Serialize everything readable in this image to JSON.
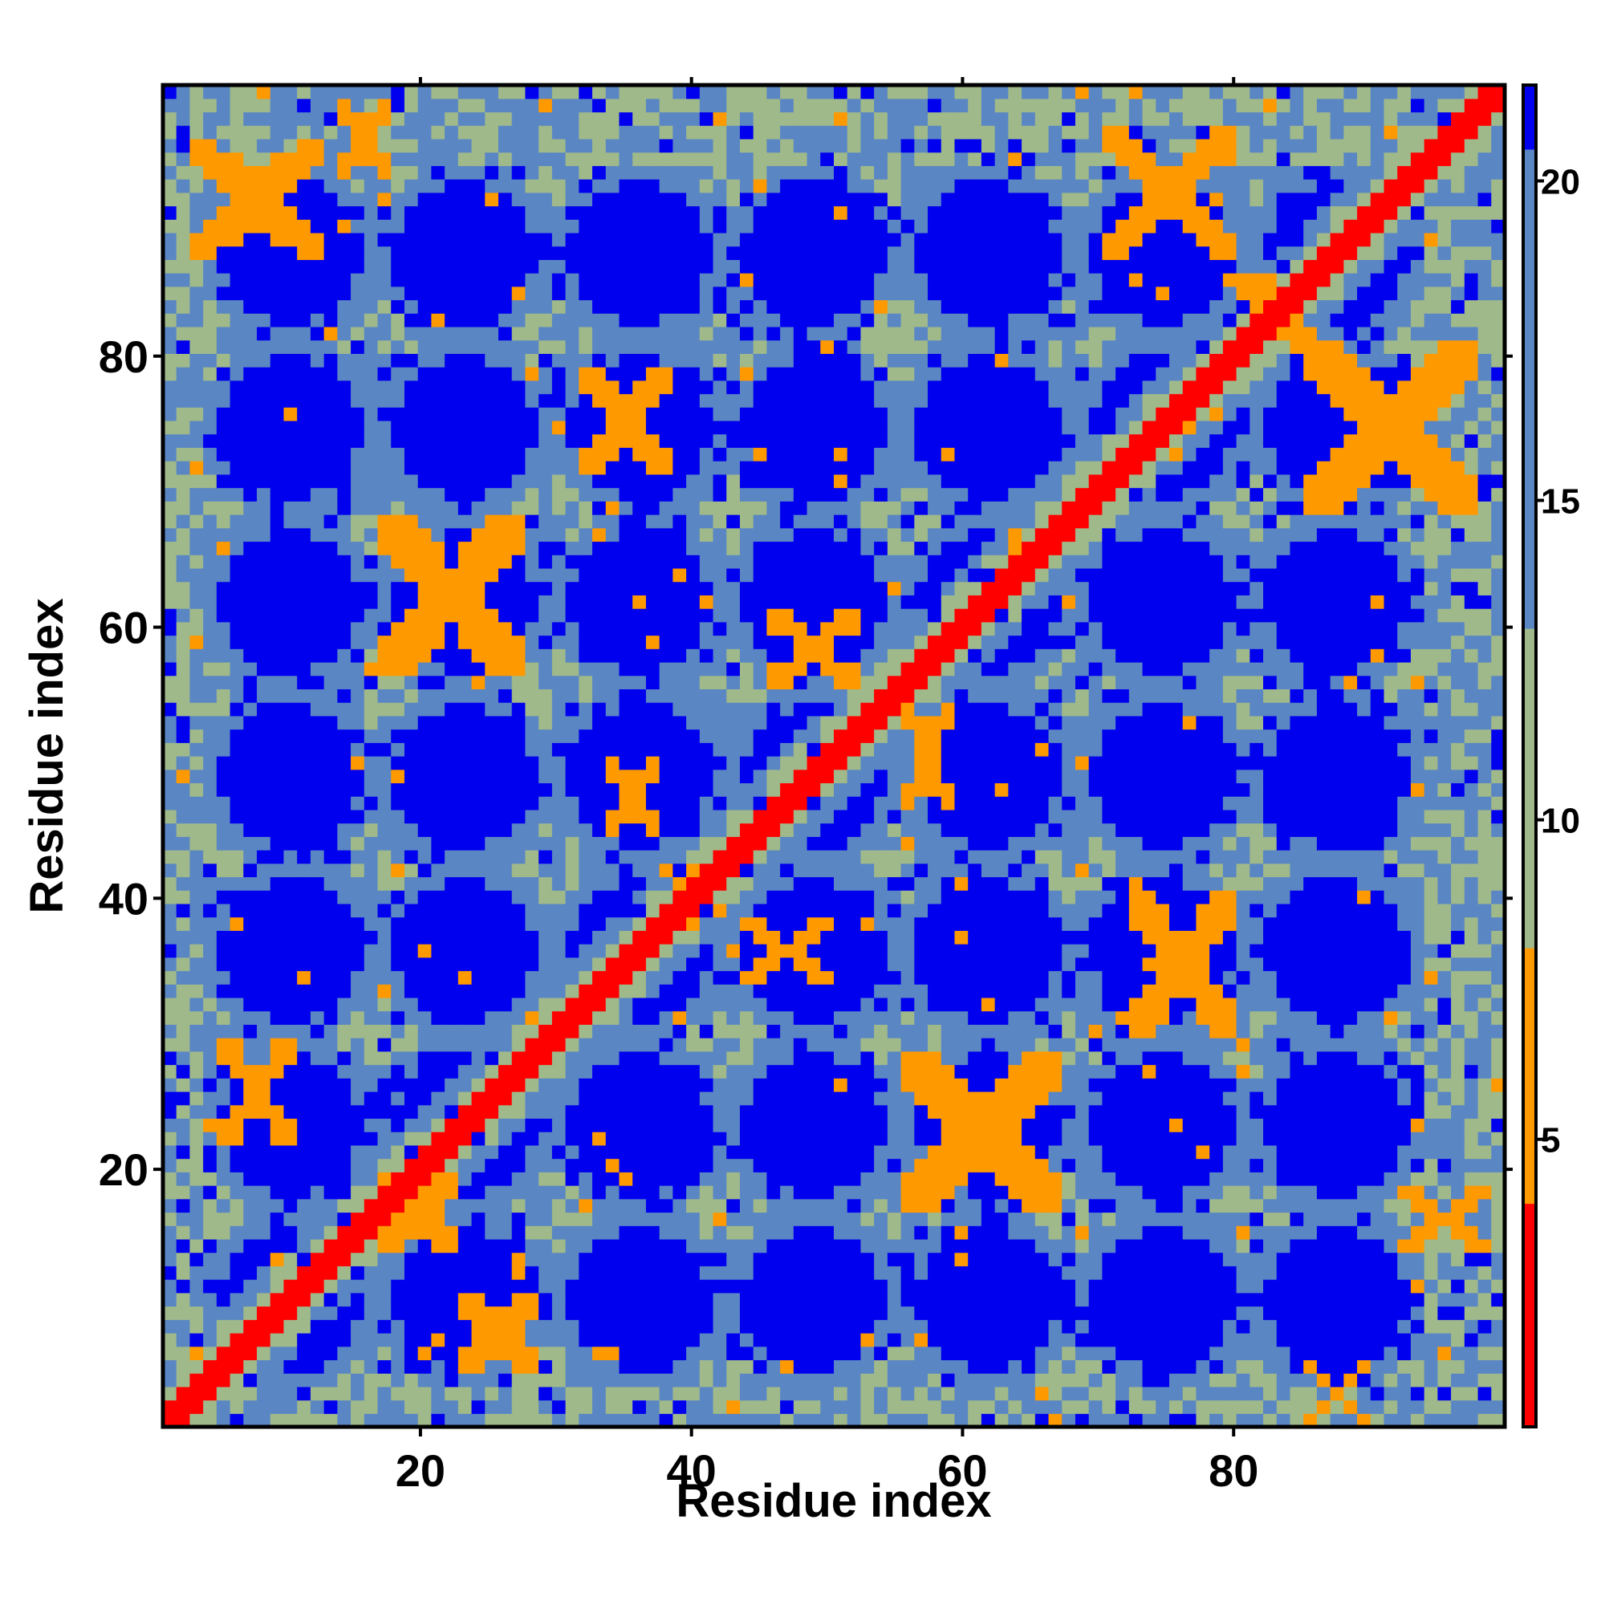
{
  "chart_data": {
    "type": "heatmap",
    "title": "",
    "xlabel": "Residue index",
    "ylabel": "Residue index",
    "n_residues": 100,
    "xlim": [
      1,
      100
    ],
    "ylim": [
      1,
      100
    ],
    "x_ticks": [
      20,
      40,
      60,
      80
    ],
    "y_ticks": [
      20,
      40,
      60,
      80
    ],
    "value_description": "pairwise distance",
    "colorbar": {
      "range": [
        0.5,
        21.5
      ],
      "ticks": [
        5,
        10,
        15,
        20
      ],
      "tick_labels": [
        "5",
        "10",
        "15",
        "20"
      ],
      "colors": {
        "very_close": "#ff0000",
        "close": "#ff9900",
        "medium": "#9fb98a",
        "far": "#5a86c4",
        "beyond": "#0000ee"
      }
    },
    "pattern": {
      "diagonal_half_width": 1.6,
      "blob_centers": [
        10,
        23,
        36,
        49,
        62,
        75,
        88
      ],
      "blob_radius_cells": 6.5,
      "contact_strands": [
        {
          "x": [
            3,
            12
          ],
          "y": [
            88,
            96
          ]
        },
        {
          "x": [
            14,
            17
          ],
          "y": [
            94,
            99
          ]
        },
        {
          "x": [
            32,
            38
          ],
          "y": [
            72,
            79
          ]
        },
        {
          "x": [
            17,
            27
          ],
          "y": [
            57,
            68
          ]
        },
        {
          "x": [
            46,
            52
          ],
          "y": [
            56,
            61
          ]
        },
        {
          "x": [
            56,
            59
          ],
          "y": [
            47,
            54
          ]
        },
        {
          "x": [
            34,
            37
          ],
          "y": [
            45,
            50
          ]
        },
        {
          "x": [
            38,
            40
          ],
          "y": [
            39,
            42
          ]
        },
        {
          "x": [
            44,
            50
          ],
          "y": [
            34,
            38
          ]
        },
        {
          "x": [
            73,
            80
          ],
          "y": [
            30,
            40
          ]
        },
        {
          "x": [
            56,
            67
          ],
          "y": [
            17,
            28
          ]
        },
        {
          "x": [
            5,
            10
          ],
          "y": [
            22,
            29
          ]
        },
        {
          "x": [
            23,
            28
          ],
          "y": [
            5,
            10
          ]
        },
        {
          "x": [
            71,
            80
          ],
          "y": [
            88,
            97
          ]
        },
        {
          "x": [
            86,
            98
          ],
          "y": [
            69,
            81
          ]
        },
        {
          "x": [
            93,
            99
          ],
          "y": [
            14,
            18
          ]
        },
        {
          "x": [
            86,
            90
          ],
          "y": [
            1,
            5
          ]
        },
        {
          "x": [
            17,
            22
          ],
          "y": [
            14,
            19
          ]
        },
        {
          "x": [
            81,
            86
          ],
          "y": [
            81,
            86
          ]
        }
      ]
    }
  }
}
